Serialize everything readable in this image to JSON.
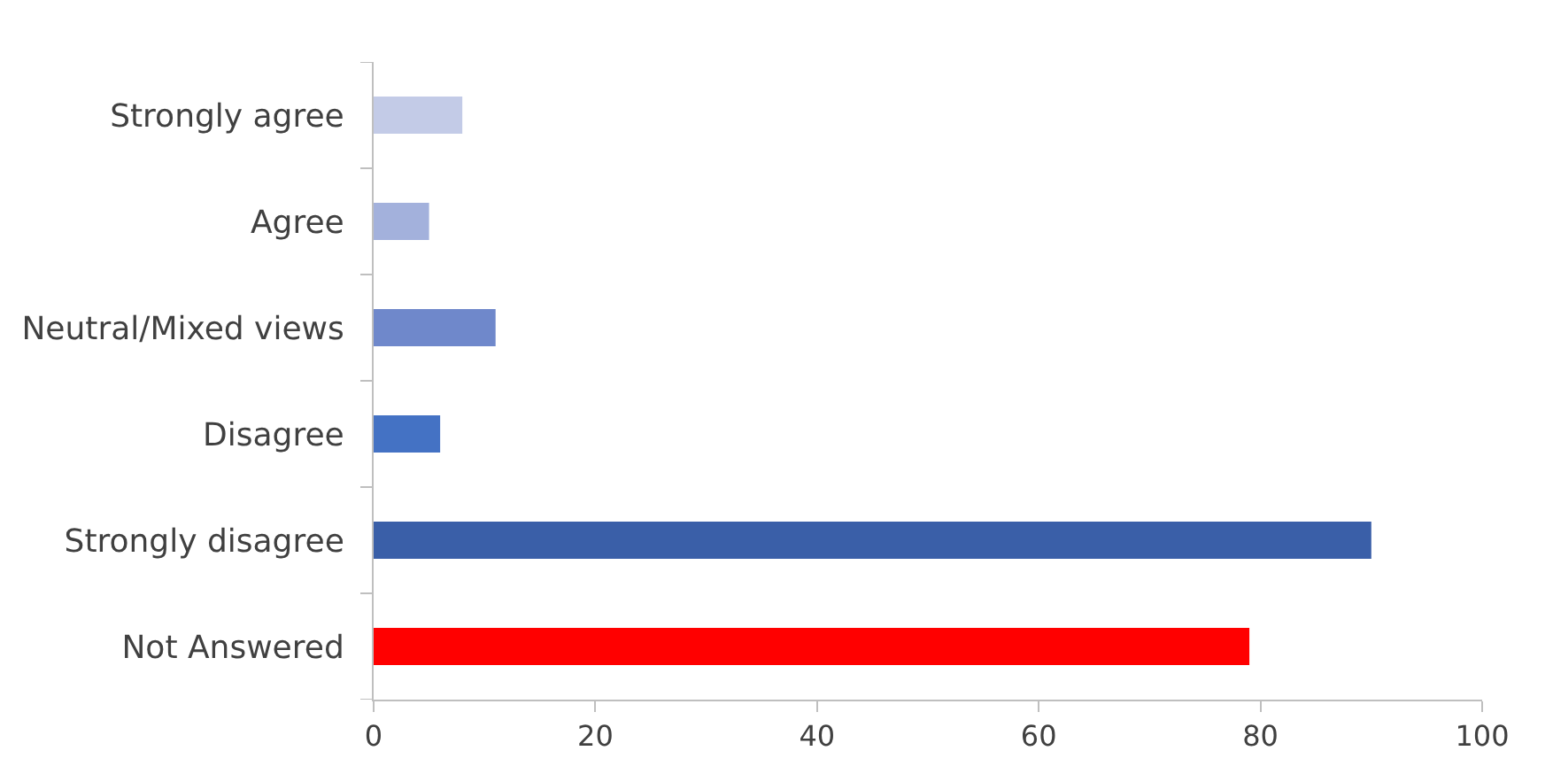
{
  "chart_data": {
    "type": "bar",
    "orientation": "horizontal",
    "categories": [
      "Strongly agree",
      "Agree",
      "Neutral/Mixed views",
      "Disagree",
      "Strongly disagree",
      "Not Answered"
    ],
    "values": [
      8,
      5,
      11,
      6,
      90,
      79
    ],
    "colors": [
      "#c3cbe7",
      "#a3b1dc",
      "#6f88cb",
      "#4472c4",
      "#3a5fa8",
      "#ff0000"
    ],
    "xlim": [
      0,
      100
    ],
    "xticks": [
      0,
      20,
      40,
      60,
      80,
      100
    ]
  }
}
